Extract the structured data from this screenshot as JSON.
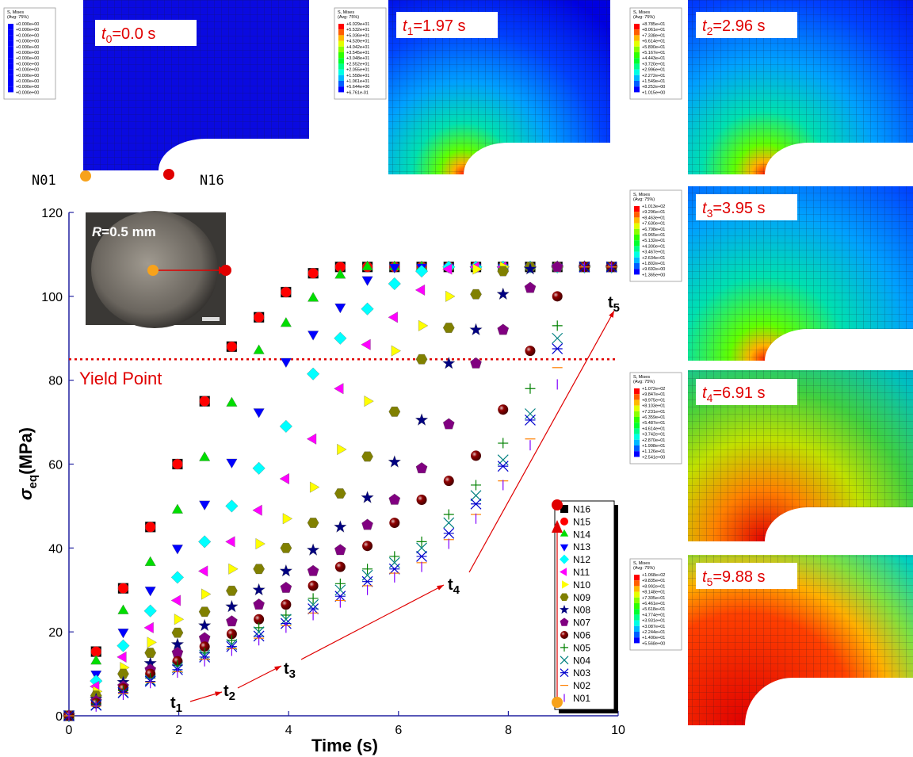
{
  "chart_data": {
    "type": "scatter",
    "xlabel": "Time (s)",
    "ylabel": {
      "symbol": "σ",
      "index": "eq",
      "rest": "(MPa)"
    },
    "xlim": [
      0,
      10
    ],
    "ylim": [
      0,
      120
    ],
    "xticks": [
      0,
      2,
      4,
      6,
      8,
      10
    ],
    "yticks": [
      0,
      20,
      40,
      60,
      80,
      100,
      120
    ],
    "yield": {
      "value": 85,
      "label": "Yield Point"
    },
    "annotations": [
      {
        "symbol": "t",
        "index": "1"
      },
      {
        "symbol": "t",
        "index": "2"
      },
      {
        "symbol": "t",
        "index": "3"
      },
      {
        "symbol": "t",
        "index": "4"
      },
      {
        "symbol": "t",
        "index": "5"
      }
    ],
    "x": [
      0,
      0.494,
      0.988,
      1.482,
      1.976,
      2.47,
      2.964,
      3.458,
      3.952,
      4.446,
      4.94,
      5.434,
      5.928,
      6.422,
      6.916,
      7.41,
      7.904,
      8.398,
      8.892,
      9.386,
      9.88
    ],
    "series": [
      {
        "name": "N16",
        "color": "#000000",
        "marker": "square",
        "values": [
          0,
          15.3,
          30.4,
          45,
          60,
          75,
          88,
          95,
          101,
          105.5,
          107,
          107,
          107,
          107,
          107,
          107,
          107,
          107,
          107,
          107,
          107
        ]
      },
      {
        "name": "N15",
        "color": "#ff0000",
        "marker": "circle",
        "values": [
          0,
          15.3,
          30.4,
          45,
          60,
          75,
          88,
          95,
          101,
          105.5,
          107,
          107,
          107,
          107,
          107,
          107,
          107,
          107,
          107,
          107,
          107
        ]
      },
      {
        "name": "N14",
        "color": "#00dd00",
        "marker": "triangle-up",
        "values": [
          0,
          13,
          25,
          36.5,
          49,
          61.5,
          74.5,
          87,
          93.5,
          99.5,
          105,
          107,
          107,
          107,
          107,
          107,
          107,
          107,
          107,
          107,
          107
        ]
      },
      {
        "name": "N13",
        "color": "#0000ff",
        "marker": "triangle-down",
        "values": [
          0,
          10,
          20,
          30,
          40,
          50.5,
          60.5,
          72.5,
          84.5,
          91,
          97.5,
          104,
          107,
          107,
          107,
          107,
          107,
          107,
          107,
          107,
          107
        ]
      },
      {
        "name": "N12",
        "color": "#00ffff",
        "marker": "diamond",
        "values": [
          0,
          8.3,
          16.7,
          25,
          33,
          41.5,
          50,
          59,
          69,
          81.5,
          90,
          97,
          103,
          106,
          107,
          107,
          107,
          107,
          107,
          107,
          107
        ]
      },
      {
        "name": "N11",
        "color": "#ff00ff",
        "marker": "triangle-left",
        "values": [
          0,
          7,
          14,
          21,
          27.5,
          34.5,
          41.5,
          49,
          56.5,
          66,
          78,
          88.5,
          95,
          101.5,
          106.5,
          107,
          107,
          107,
          107,
          107,
          107
        ]
      },
      {
        "name": "N10",
        "color": "#ffff00",
        "marker": "triangle-right",
        "values": [
          0,
          5.8,
          11.5,
          17.5,
          23,
          29,
          35,
          41,
          47,
          54.5,
          63.5,
          75,
          87,
          93,
          100,
          106.5,
          107,
          107,
          107,
          107,
          107
        ]
      },
      {
        "name": "N09",
        "color": "#808000",
        "marker": "hexagon",
        "values": [
          0,
          4.8,
          10,
          15,
          19.8,
          24.8,
          29.8,
          35,
          40,
          46,
          53,
          61.8,
          72.5,
          85,
          92.5,
          100.5,
          106,
          107,
          107,
          107,
          107
        ]
      },
      {
        "name": "N08",
        "color": "#000080",
        "marker": "star",
        "values": [
          0,
          4,
          8,
          12.5,
          17,
          21.5,
          26,
          30,
          34.5,
          39.5,
          45,
          52,
          60.5,
          70.5,
          84,
          92,
          100.5,
          106.5,
          107,
          107,
          107
        ]
      },
      {
        "name": "N07",
        "color": "#800080",
        "marker": "pentagon",
        "values": [
          0,
          3.5,
          7,
          11,
          15,
          18.5,
          22.5,
          26.5,
          30.5,
          34.5,
          39.5,
          45.5,
          51.5,
          59,
          69.5,
          84,
          92,
          102,
          107,
          107,
          107
        ]
      },
      {
        "name": "N06",
        "color": "#800000",
        "marker": "ball",
        "values": [
          0,
          3,
          6.5,
          10,
          13,
          16.5,
          19.5,
          23,
          26.5,
          31,
          35.5,
          40.5,
          46,
          51.5,
          56,
          62,
          73,
          87,
          100,
          107,
          107
        ]
      },
      {
        "name": "N05",
        "color": "#008000",
        "marker": "plus",
        "values": [
          0,
          2.8,
          6,
          9,
          12,
          15,
          18,
          21,
          24,
          28,
          31.5,
          35,
          38,
          41.5,
          48,
          55,
          65,
          78,
          93,
          107,
          107
        ]
      },
      {
        "name": "N04",
        "color": "#008080",
        "marker": "cross",
        "values": [
          0,
          2.6,
          5.6,
          8.5,
          11.5,
          14.5,
          17,
          20,
          23,
          26.5,
          30,
          33.5,
          36.5,
          40,
          46,
          52.5,
          61,
          72,
          90,
          107,
          107
        ]
      },
      {
        "name": "N03",
        "color": "#0000cd",
        "marker": "asterisk",
        "values": [
          0,
          2.5,
          5.5,
          8.2,
          11,
          14,
          16.5,
          19,
          22,
          25.5,
          28.5,
          32,
          35,
          38,
          43.5,
          50.5,
          59.5,
          70.5,
          87.5,
          107,
          107
        ]
      },
      {
        "name": "N02",
        "color": "#ff8000",
        "marker": "hline",
        "values": [
          0,
          2.3,
          5.3,
          8,
          10.5,
          13.5,
          16,
          18.5,
          21.5,
          24.5,
          27.5,
          31,
          34,
          36.5,
          42,
          48,
          56,
          66,
          83,
          107,
          107
        ]
      },
      {
        "name": "N01",
        "color": "#8000ff",
        "marker": "vline",
        "values": [
          0,
          2.2,
          5,
          7.8,
          10.3,
          13,
          15.5,
          18,
          21,
          24,
          27,
          30,
          33,
          35.5,
          41,
          47,
          55,
          64.5,
          79,
          107,
          107
        ]
      }
    ]
  },
  "nodes": [
    "N01",
    "N16"
  ],
  "inset_label": {
    "symbol": "R",
    "rest": "=0.5 mm"
  },
  "panels": [
    {
      "time": {
        "symbol": "t",
        "index": "0",
        "rest": "=0.0 s"
      },
      "legend_title": "S, Mises",
      "legend_subtitle": "(Avg: 75%)",
      "legend_values": [
        "+0.000e+00",
        "+0.000e+00",
        "+0.000e+00",
        "+0.000e+00",
        "+0.000e+00",
        "+0.000e+00",
        "+0.000e+00",
        "+0.000e+00",
        "+0.000e+00",
        "+0.000e+00",
        "+0.000e+00",
        "+0.000e+00",
        "+0.000e+00"
      ]
    },
    {
      "time": {
        "symbol": "t",
        "index": "1",
        "rest": "=1.97 s"
      },
      "legend_title": "S, Mises",
      "legend_subtitle": "(Avg: 75%)",
      "legend_values": [
        "+6.029e+01",
        "+5.532e+01",
        "+5.036e+01",
        "+4.539e+01",
        "+4.042e+01",
        "+3.545e+01",
        "+3.048e+01",
        "+2.552e+01",
        "+2.055e+01",
        "+1.558e+01",
        "+1.061e+01",
        "+5.644e+00",
        "+6.761e-01"
      ]
    },
    {
      "time": {
        "symbol": "t",
        "index": "2",
        "rest": "=2.96 s"
      },
      "legend_title": "S, Mises",
      "legend_subtitle": "(Avg: 75%)",
      "legend_values": [
        "+8.785e+01",
        "+8.061e+01",
        "+7.338e+01",
        "+6.614e+01",
        "+5.890e+01",
        "+5.167e+01",
        "+4.443e+01",
        "+3.720e+01",
        "+2.996e+01",
        "+2.272e+01",
        "+1.549e+01",
        "+8.252e+00",
        "+1.015e+00"
      ]
    },
    {
      "time": {
        "symbol": "t",
        "index": "3",
        "rest": "=3.95 s"
      },
      "legend_title": "S, Mises",
      "legend_subtitle": "(Avg: 75%)",
      "legend_values": [
        "+1.013e+02",
        "+9.296e+01",
        "+8.463e+01",
        "+7.630e+01",
        "+6.798e+01",
        "+5.965e+01",
        "+5.132e+01",
        "+4.300e+01",
        "+3.467e+01",
        "+2.634e+01",
        "+1.802e+01",
        "+9.692e+00",
        "+1.365e+00"
      ]
    },
    {
      "time": {
        "symbol": "t",
        "index": "4",
        "rest": "=6.91 s"
      },
      "legend_title": "S, Mises",
      "legend_subtitle": "(Avg: 75%)",
      "legend_values": [
        "+1.072e+02",
        "+9.847e+01",
        "+8.975e+01",
        "+8.103e+01",
        "+7.231e+01",
        "+6.359e+01",
        "+5.487e+01",
        "+4.614e+01",
        "+3.742e+01",
        "+2.870e+01",
        "+1.998e+01",
        "+1.126e+01",
        "+2.541e+00"
      ]
    },
    {
      "time": {
        "symbol": "t",
        "index": "5",
        "rest": "=9.88 s"
      },
      "legend_title": "S, Mises",
      "legend_subtitle": "(Avg: 75%)",
      "legend_values": [
        "+1.068e+02",
        "+9.835e+01",
        "+8.992e+01",
        "+8.148e+01",
        "+7.305e+01",
        "+6.461e+01",
        "+5.618e+01",
        "+4.774e+01",
        "+3.931e+01",
        "+3.087e+01",
        "+2.244e+01",
        "+1.400e+01",
        "+5.568e+00"
      ]
    }
  ]
}
